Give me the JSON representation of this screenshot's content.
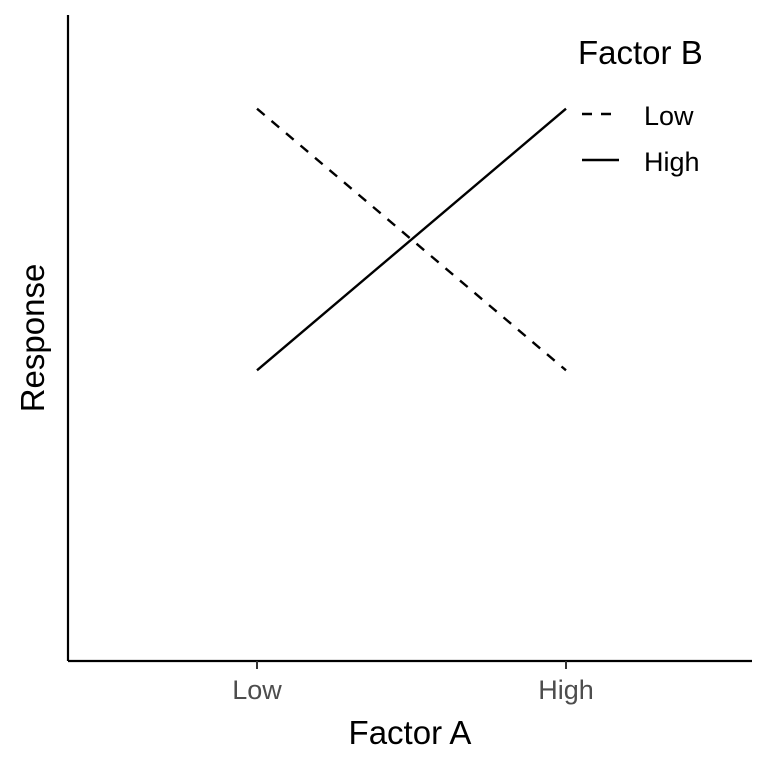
{
  "chart_data": {
    "type": "line",
    "xlabel": "Factor A",
    "ylabel": "Response",
    "categories": [
      "Low",
      "High"
    ],
    "ylim": [
      0,
      10
    ],
    "grid": false,
    "legend": {
      "title": "Factor B",
      "position": "top-right"
    },
    "series": [
      {
        "name": "Low",
        "values": [
          9.5,
          5.0
        ],
        "linestyle": "dashed",
        "color": "#000000"
      },
      {
        "name": "High",
        "values": [
          5.0,
          9.5
        ],
        "linestyle": "solid",
        "color": "#000000"
      }
    ]
  }
}
